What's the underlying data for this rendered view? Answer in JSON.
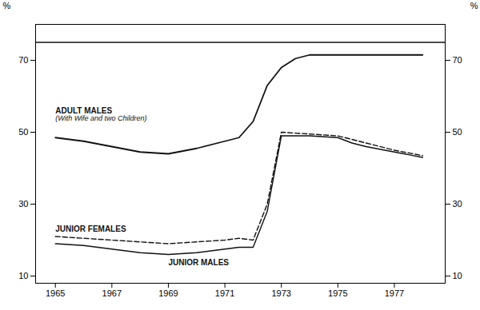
{
  "chart_data": {
    "type": "line",
    "series": [
      {
        "name": "ADULT MALES",
        "color": "#111111",
        "line_style": "solid",
        "x": [
          1965,
          1966,
          1967,
          1968,
          1969,
          1970,
          1971,
          1971.5,
          1972,
          1972.5,
          1973,
          1973.5,
          1974,
          1975,
          1975.5,
          1976,
          1977,
          1978
        ],
        "values": [
          48.5,
          47.5,
          46.0,
          44.5,
          44.0,
          45.5,
          47.5,
          48.5,
          53.0,
          63.0,
          68.0,
          70.5,
          71.5,
          71.5,
          71.5,
          71.5,
          71.5,
          71.5
        ]
      },
      {
        "name": "JUNIOR FEMALES",
        "color": "#111111",
        "line_style": "dashed",
        "x": [
          1965,
          1966,
          1967,
          1968,
          1969,
          1970,
          1971,
          1971.5,
          1972,
          1972.5,
          1973,
          1974,
          1975,
          1975.5,
          1976,
          1977,
          1978
        ],
        "values": [
          21.0,
          20.5,
          20.0,
          19.5,
          19.0,
          19.5,
          20.0,
          20.5,
          20.0,
          30.0,
          50.0,
          49.5,
          49.0,
          48.0,
          47.0,
          45.0,
          43.5
        ]
      },
      {
        "name": "JUNIOR MALES",
        "color": "#111111",
        "line_style": "solid",
        "x": [
          1965,
          1966,
          1967,
          1968,
          1969,
          1970,
          1971,
          1971.5,
          1972,
          1972.5,
          1973,
          1974,
          1975,
          1975.5,
          1976,
          1977,
          1978
        ],
        "values": [
          19.0,
          18.5,
          17.5,
          16.5,
          16.0,
          16.5,
          17.5,
          18.0,
          18.0,
          28.0,
          49.0,
          49.0,
          48.5,
          47.0,
          46.0,
          44.5,
          43.0
        ]
      }
    ],
    "annotations": [
      {
        "text": "(With Wife and two Children)",
        "series": "ADULT MALES"
      }
    ],
    "reference_lines": [
      {
        "y": 75.0,
        "color": "#111111"
      }
    ],
    "xlim": [
      1964.3,
      1978.8
    ],
    "xticks": [
      1965,
      1967,
      1969,
      1971,
      1973,
      1975,
      1977
    ],
    "ylim": [
      8,
      80
    ],
    "yticks": [
      10,
      30,
      50,
      70
    ],
    "ylabel": "%",
    "y2lim": [
      8,
      80
    ],
    "y2ticks": [
      10,
      30,
      50,
      70
    ],
    "y2label": "%",
    "grid": false
  }
}
